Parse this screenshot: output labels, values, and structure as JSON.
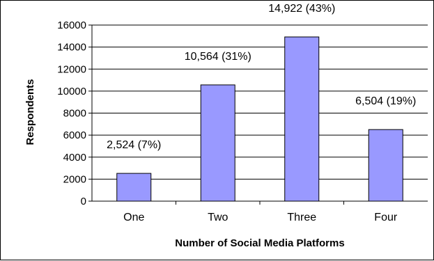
{
  "chart_data": {
    "type": "bar",
    "categories": [
      "One",
      "Two",
      "Three",
      "Four"
    ],
    "values": [
      2524,
      10564,
      14922,
      6504
    ],
    "data_labels": [
      "2,524 (7%)",
      "10,564 (31%)",
      "14,922 (43%)",
      "6,504 (19%)"
    ],
    "title": "",
    "xlabel": "Number of Social Media Platforms",
    "ylabel": "Respondents",
    "ylim": [
      0,
      16000
    ],
    "yticks": [
      0,
      2000,
      4000,
      6000,
      8000,
      10000,
      12000,
      14000,
      16000
    ],
    "grid": true,
    "legend": "none",
    "colors": {
      "bar_fill": "#9999FF",
      "bar_stroke": "#000000",
      "gridline": "#000000",
      "background": "#FFFFFF"
    }
  }
}
